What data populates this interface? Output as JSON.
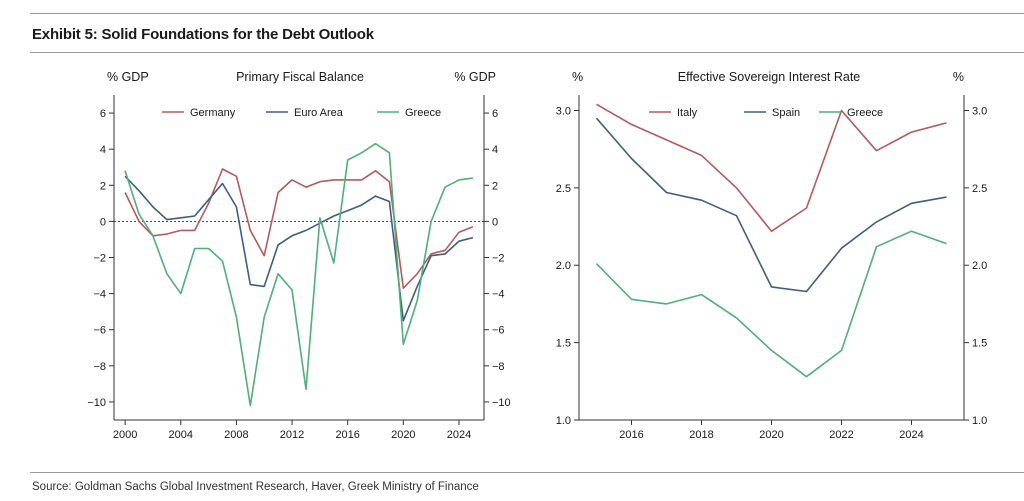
{
  "exhibit": {
    "title": "Exhibit 5: Solid Foundations for the Debt Outlook",
    "source": "Source: Goldman Sachs Global Investment Research, Haver, Greek Ministry of Finance"
  },
  "colors": {
    "Germany": "#b55a5a",
    "Euro Area": "#3d5f82",
    "Greece": "#4fb07a",
    "Italy": "#b55a5a",
    "Spain": "#3d5f82"
  },
  "chart_data": [
    {
      "type": "line",
      "title": "Primary Fiscal Balance",
      "ylabel_left": "% GDP",
      "ylabel_right": "% GDP",
      "ylim": [
        -11,
        7
      ],
      "yticks": [
        -10,
        -8,
        -6,
        -4,
        -2,
        0,
        2,
        4,
        6
      ],
      "xlim": [
        1999.2,
        2025.8
      ],
      "xticks": [
        2000,
        2004,
        2008,
        2012,
        2016,
        2020,
        2024
      ],
      "zero_line": true,
      "grid": false,
      "legend_position": "top",
      "x": [
        2000,
        2001,
        2002,
        2003,
        2004,
        2005,
        2006,
        2007,
        2008,
        2009,
        2010,
        2011,
        2012,
        2013,
        2014,
        2015,
        2016,
        2017,
        2018,
        2019,
        2020,
        2021,
        2022,
        2023,
        2024,
        2025
      ],
      "series": [
        {
          "name": "Germany",
          "values": [
            1.6,
            0.0,
            -0.8,
            -0.7,
            -0.5,
            -0.5,
            1.0,
            2.9,
            2.5,
            -0.5,
            -1.9,
            1.6,
            2.3,
            1.9,
            2.2,
            2.3,
            2.3,
            2.3,
            2.8,
            2.2,
            -3.7,
            -2.9,
            -1.8,
            -1.6,
            -0.6,
            -0.3
          ]
        },
        {
          "name": "Euro Area",
          "values": [
            2.5,
            1.7,
            0.8,
            0.1,
            0.2,
            0.3,
            1.2,
            2.1,
            0.8,
            -3.5,
            -3.6,
            -1.3,
            -0.8,
            -0.5,
            -0.1,
            0.3,
            0.6,
            0.9,
            1.4,
            1.1,
            -5.5,
            -3.6,
            -1.9,
            -1.8,
            -1.1,
            -0.9
          ]
        },
        {
          "name": "Greece",
          "values": [
            2.8,
            0.4,
            -0.8,
            -2.9,
            -4.0,
            -1.5,
            -1.5,
            -2.2,
            -5.3,
            -10.2,
            -5.3,
            -2.9,
            -3.8,
            -9.3,
            0.2,
            -2.3,
            3.4,
            3.8,
            4.3,
            3.8,
            -6.8,
            -4.4,
            0.0,
            1.9,
            2.3,
            2.4
          ]
        }
      ]
    },
    {
      "type": "line",
      "title": "Effective Sovereign Interest Rate",
      "ylabel_left": "%",
      "ylabel_right": "%",
      "ylim": [
        1.0,
        3.1
      ],
      "yticks": [
        1.0,
        1.5,
        2.0,
        2.5,
        3.0
      ],
      "ytick_labels": [
        "1.0",
        "1.5",
        "2.0",
        "2.5",
        "3.0"
      ],
      "xlim": [
        2014.5,
        2025.5
      ],
      "xticks": [
        2016,
        2018,
        2020,
        2022,
        2024
      ],
      "grid": false,
      "legend_position": "top",
      "x": [
        2015,
        2016,
        2017,
        2018,
        2019,
        2020,
        2021,
        2022,
        2023,
        2024,
        2025
      ],
      "series": [
        {
          "name": "Italy",
          "values": [
            3.04,
            2.91,
            2.81,
            2.71,
            2.5,
            2.22,
            2.37,
            3.0,
            2.74,
            2.86,
            2.92
          ]
        },
        {
          "name": "Spain",
          "values": [
            2.95,
            2.69,
            2.47,
            2.42,
            2.32,
            1.86,
            1.83,
            2.11,
            2.28,
            2.4,
            2.44
          ]
        },
        {
          "name": "Greece",
          "values": [
            2.01,
            1.78,
            1.75,
            1.81,
            1.66,
            1.45,
            1.28,
            1.45,
            2.12,
            2.22,
            2.14
          ]
        }
      ]
    }
  ]
}
